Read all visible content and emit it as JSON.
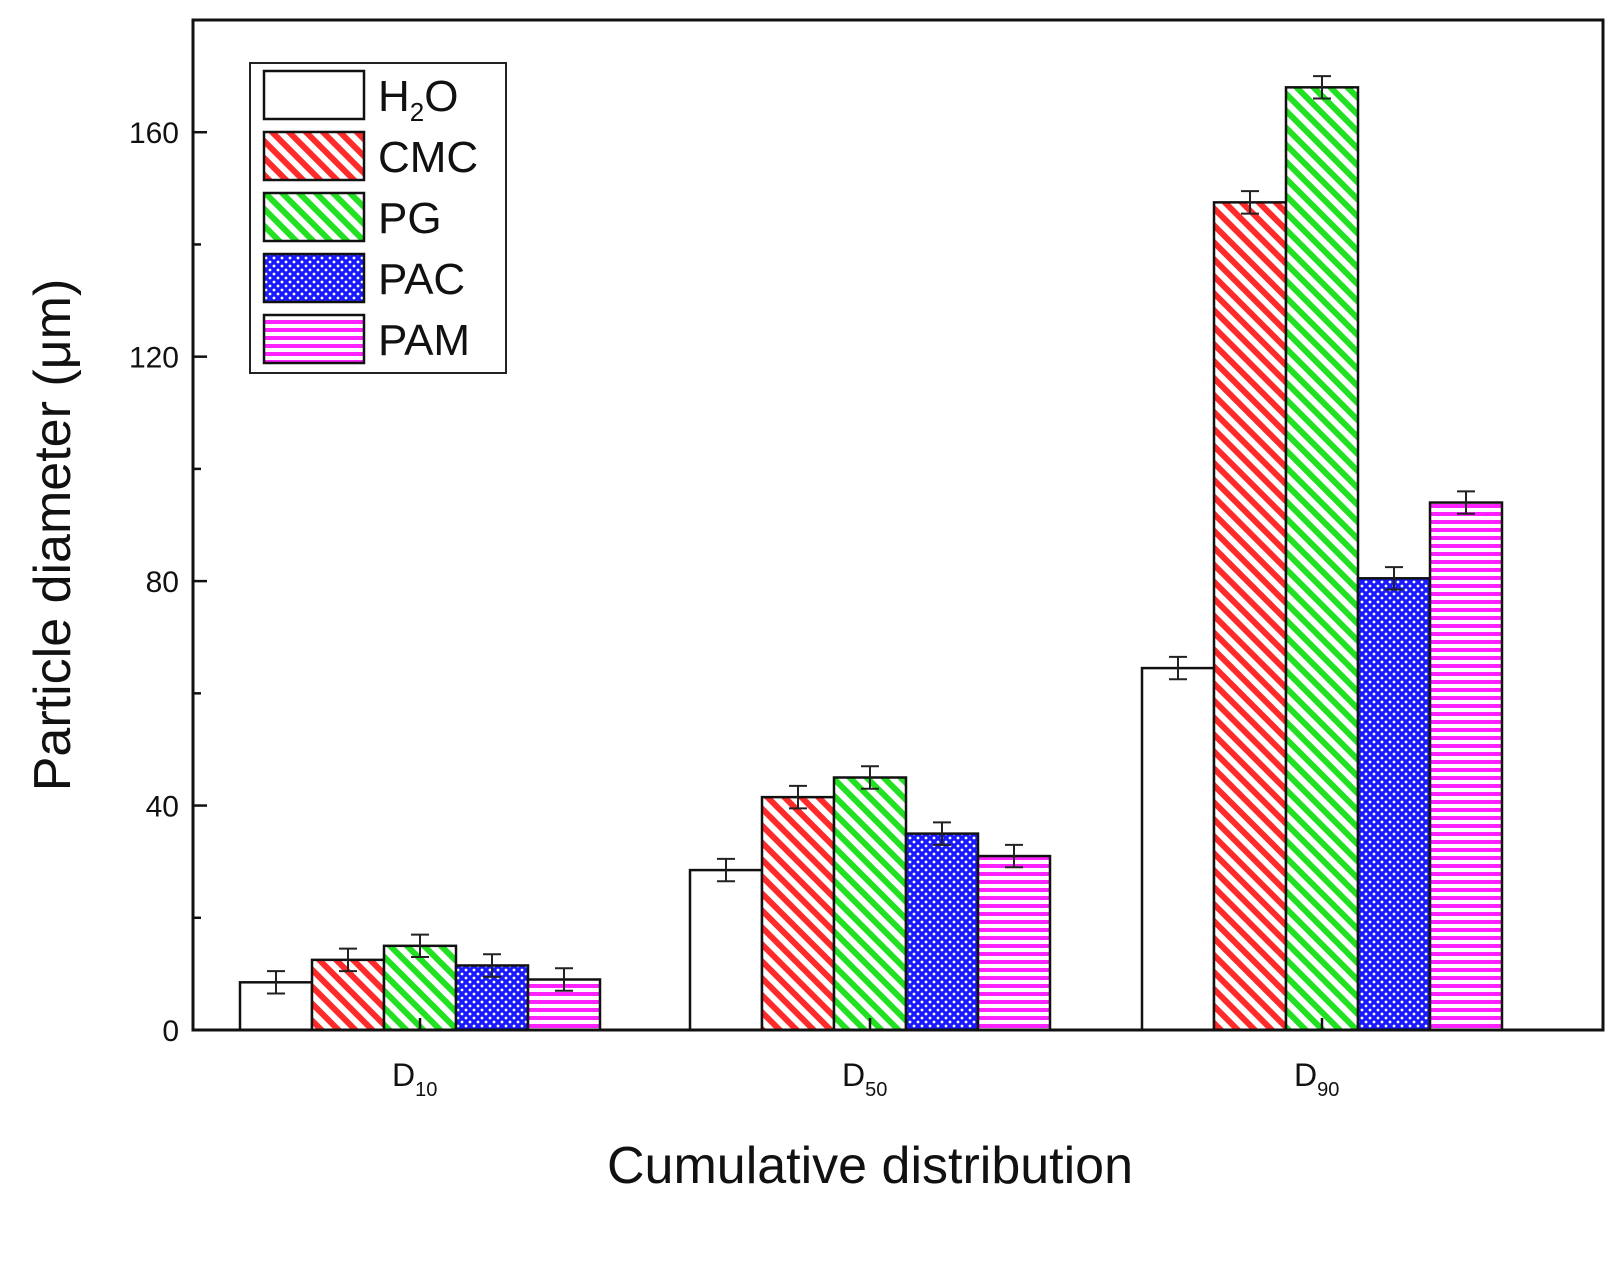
{
  "chart_data": {
    "type": "bar",
    "title": "",
    "xlabel": "Cumulative distribution",
    "ylabel": "Particle diameter (μm)",
    "ylim": [
      0,
      180
    ],
    "yticks": [
      0,
      40,
      80,
      120,
      160
    ],
    "categories": [
      {
        "base": "D",
        "sub": "10"
      },
      {
        "base": "D",
        "sub": "50"
      },
      {
        "base": "D",
        "sub": "90"
      }
    ],
    "series": [
      {
        "name": "H2O",
        "label_base": "H",
        "label_sub": "2",
        "label_tail": "O",
        "color": "#ffffff",
        "pattern": "none",
        "values": [
          8.5,
          28.5,
          64.5
        ],
        "errors": [
          2.0,
          2.0,
          2.0
        ]
      },
      {
        "name": "CMC",
        "label_base": "CMC",
        "label_sub": "",
        "label_tail": "",
        "color": "#ff2a2a",
        "pattern": "diagonal",
        "values": [
          12.5,
          41.5,
          147.5
        ],
        "errors": [
          2.0,
          2.0,
          2.0
        ]
      },
      {
        "name": "PG",
        "label_base": "PG",
        "label_sub": "",
        "label_tail": "",
        "color": "#22e022",
        "pattern": "diagonal",
        "values": [
          15.0,
          45.0,
          168.0
        ],
        "errors": [
          2.0,
          2.0,
          2.0
        ]
      },
      {
        "name": "PAC",
        "label_base": "PAC",
        "label_sub": "",
        "label_tail": "",
        "color": "#1a1aff",
        "pattern": "dots",
        "values": [
          11.5,
          35.0,
          80.5
        ],
        "errors": [
          2.0,
          2.0,
          2.0
        ]
      },
      {
        "name": "PAM",
        "label_base": "PAM",
        "label_sub": "",
        "label_tail": "",
        "color": "#ff22ff",
        "pattern": "horizontal",
        "values": [
          9.0,
          31.0,
          94.0
        ],
        "errors": [
          2.0,
          2.0,
          2.0
        ]
      }
    ],
    "legend_position": "top-left",
    "grid": false
  }
}
